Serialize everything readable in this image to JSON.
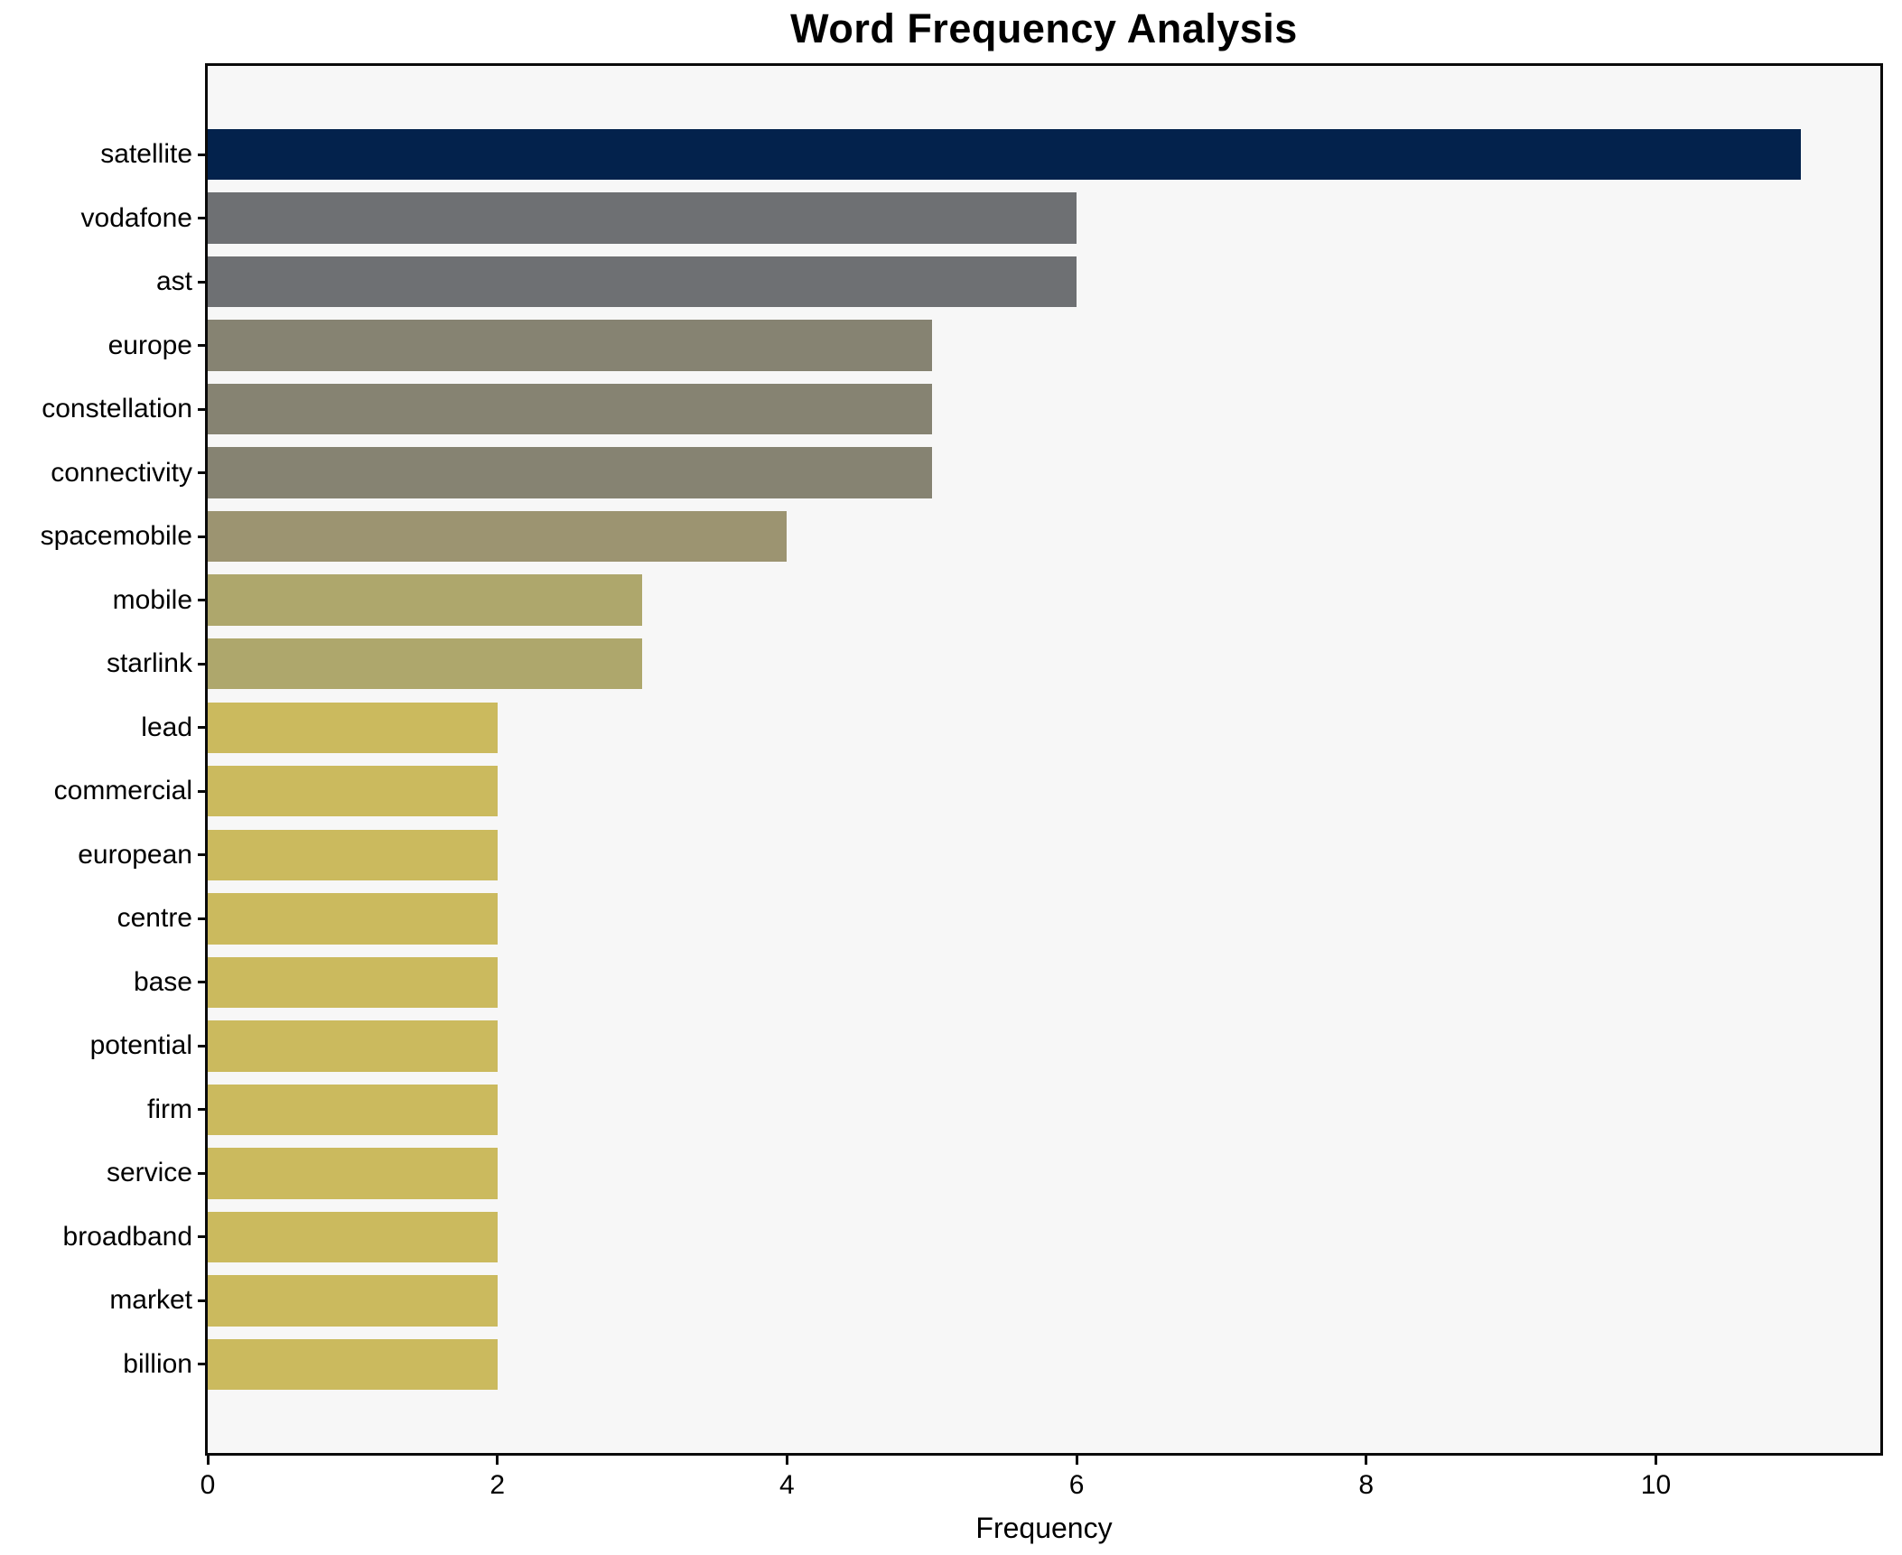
{
  "chart_data": {
    "type": "bar",
    "orientation": "horizontal",
    "title": "Word Frequency Analysis",
    "xlabel": "Frequency",
    "ylabel": "",
    "categories": [
      "satellite",
      "vodafone",
      "ast",
      "europe",
      "constellation",
      "connectivity",
      "spacemobile",
      "mobile",
      "starlink",
      "lead",
      "commercial",
      "european",
      "centre",
      "base",
      "potential",
      "firm",
      "service",
      "broadband",
      "market",
      "billion"
    ],
    "values": [
      11,
      6,
      6,
      5,
      5,
      5,
      4,
      3,
      3,
      2,
      2,
      2,
      2,
      2,
      2,
      2,
      2,
      2,
      2,
      2
    ],
    "bar_colors": [
      "#03224c",
      "#6e7073",
      "#6e7073",
      "#868372",
      "#868372",
      "#868372",
      "#9c9471",
      "#aea76c",
      "#aea76c",
      "#cbba5e",
      "#cbba5e",
      "#cbba5e",
      "#cbba5e",
      "#cbba5e",
      "#cbba5e",
      "#cbba5e",
      "#cbba5e",
      "#cbba5e",
      "#cbba5e",
      "#cbba5e"
    ],
    "xticks": [
      0,
      2,
      4,
      6,
      8,
      10
    ],
    "xlim": [
      0,
      11.55
    ],
    "grid": false,
    "legend": false,
    "plot_background": "#f7f7f7",
    "figure_background": "#ffffff",
    "bar_height_fraction": 0.8
  }
}
